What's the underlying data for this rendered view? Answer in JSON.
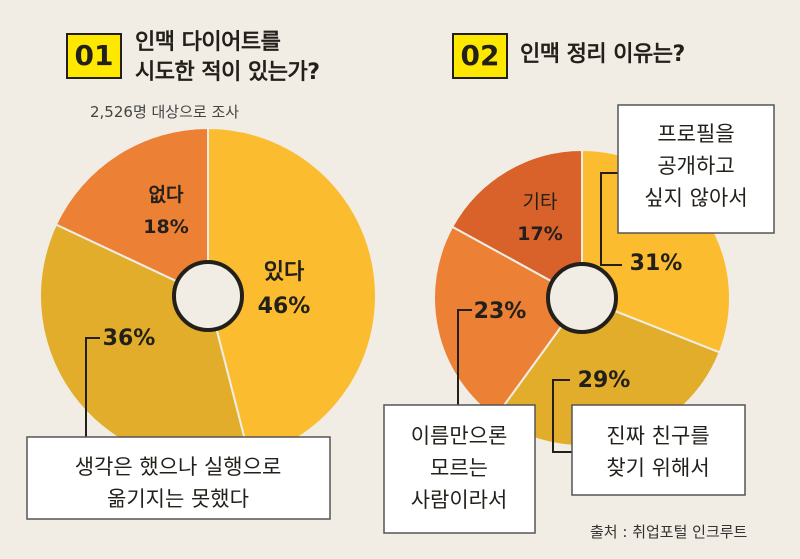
{
  "left": {
    "badge": "01",
    "title_line1": "인맥 다이어트를",
    "title_line2": "시도한 적이 있는가?",
    "subtitle": "2,526명 대상으로 조사"
  },
  "right": {
    "badge": "02",
    "title": "인맥 정리 이유는?"
  },
  "source": "출처 : 취업포털 인크루트",
  "colors": {
    "background": "#f1ede4",
    "yellow": "#fbbd2f",
    "mustard": "#e2ad2b",
    "orange": "#ec8135",
    "dark_orange": "#d9612a",
    "badge": "#ffe800"
  },
  "chart_data": [
    {
      "type": "pie",
      "title": "인맥 다이어트를 시도한 적이 있는가?",
      "slices": [
        {
          "label": "있다",
          "value": 46,
          "display": "46%"
        },
        {
          "label": "생각은 했으나 실행으로 옮기지는 못했다",
          "label_lines": [
            "생각은 했으나 실행으로",
            "옮기지는 못했다"
          ],
          "value": 36,
          "display": "36%"
        },
        {
          "label": "없다",
          "value": 18,
          "display": "18%"
        }
      ]
    },
    {
      "type": "pie",
      "title": "인맥 정리 이유는?",
      "slices": [
        {
          "label": "프로필을 공개하고 싶지 않아서",
          "label_lines": [
            "프로필을",
            "공개하고",
            "싶지 않아서"
          ],
          "value": 31,
          "display": "31%"
        },
        {
          "label": "진짜 친구를 찾기 위해서",
          "label_lines": [
            "진짜 친구를",
            "찾기 위해서"
          ],
          "value": 29,
          "display": "29%"
        },
        {
          "label": "이름만으론 모르는 사람이라서",
          "label_lines": [
            "이름만으론",
            "모르는",
            "사람이라서"
          ],
          "value": 23,
          "display": "23%"
        },
        {
          "label": "기타",
          "value": 17,
          "display": "17%"
        }
      ]
    }
  ]
}
